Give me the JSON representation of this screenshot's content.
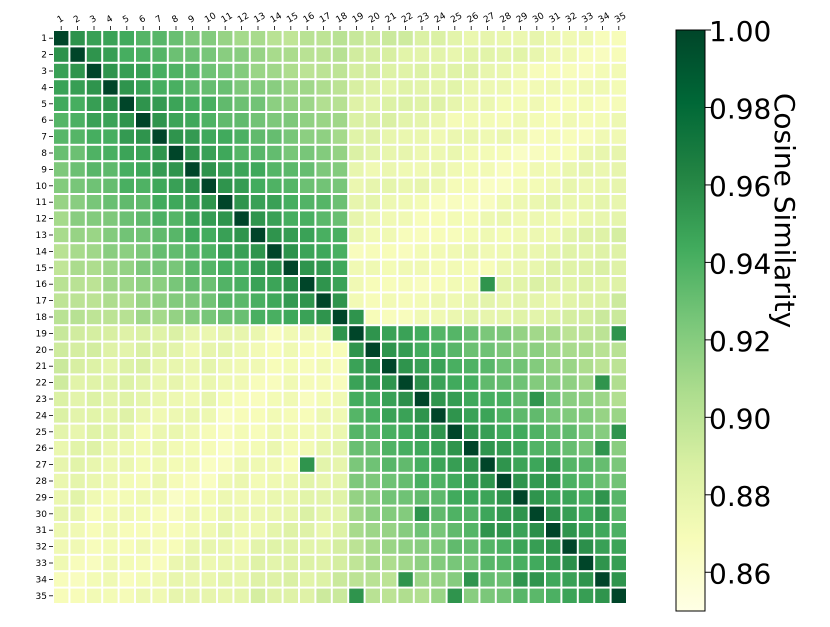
{
  "chart_data": {
    "type": "heatmap",
    "title": "",
    "xlabel": "",
    "ylabel": "",
    "row_labels": [
      "1",
      "2",
      "3",
      "4",
      "5",
      "6",
      "7",
      "8",
      "9",
      "10",
      "11",
      "12",
      "13",
      "14",
      "15",
      "16",
      "17",
      "18",
      "19",
      "20",
      "21",
      "22",
      "23",
      "24",
      "25",
      "26",
      "27",
      "28",
      "29",
      "30",
      "31",
      "32",
      "33",
      "34",
      "35"
    ],
    "col_labels": [
      "1",
      "2",
      "3",
      "4",
      "5",
      "6",
      "7",
      "8",
      "9",
      "10",
      "11",
      "12",
      "13",
      "14",
      "15",
      "16",
      "17",
      "18",
      "19",
      "20",
      "21",
      "22",
      "23",
      "24",
      "25",
      "26",
      "27",
      "28",
      "29",
      "30",
      "31",
      "32",
      "33",
      "34",
      "35"
    ],
    "values_note": "35x35 symmetric cosine similarity matrix, diagonal = 1.00; off-diagonal values are estimated from cell colour",
    "diagonal_value": 1.0,
    "approx_structure": {
      "adjacent_neighbors_range": [
        0.95,
        0.97
      ],
      "same_block_range": [
        0.9,
        0.95
      ],
      "cross_block_range": [
        0.86,
        0.9
      ],
      "blocks": [
        [
          1,
          18
        ],
        [
          19,
          35
        ]
      ]
    },
    "colorbar": {
      "label": "Cosine Similarity",
      "min": 0.85,
      "max": 1.0,
      "ticks": [
        "0.86",
        "0.88",
        "0.90",
        "0.92",
        "0.94",
        "0.96",
        "0.98",
        "1.00"
      ],
      "colormap": "Greens (light yellow to dark green)",
      "color_stops": [
        "#ffffe5",
        "#f7fcb9",
        "#d9f0a3",
        "#addd8e",
        "#78c679",
        "#41ab5d",
        "#238443",
        "#006837",
        "#004529"
      ]
    },
    "grid": "white cell separators",
    "legend": "right colorbar"
  }
}
